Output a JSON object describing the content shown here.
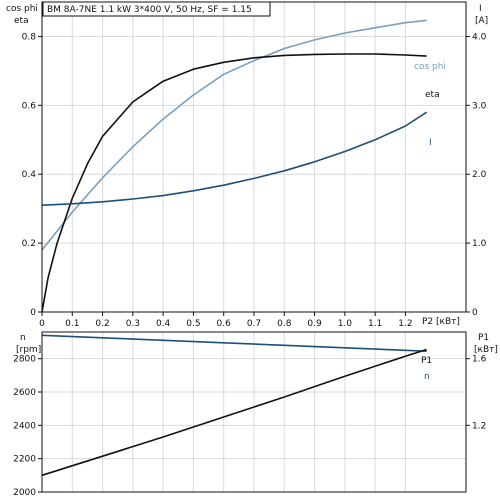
{
  "chart_data": [
    {
      "type": "line",
      "title": "BM 8A-7NE   1.1 kW   3*400 V, 50 Hz, SF = 1.15",
      "xlabel": "P2 [кВт]",
      "left_axis_labels": [
        "cos phi",
        "eta"
      ],
      "right_axis_labels": [
        "I",
        "[A]"
      ],
      "x_ticks": [
        "0",
        "0.1",
        "0.2",
        "0.3",
        "0.4",
        "0.5",
        "0.6",
        "0.7",
        "0.8",
        "0.9",
        "1.0",
        "1.1",
        "1.2"
      ],
      "y_left_ticks": [
        "0",
        "0.2",
        "0.4",
        "0.6",
        "0.8"
      ],
      "y_right_ticks": [
        "0",
        "1.0",
        "2.0",
        "3.0",
        "4.0"
      ],
      "xlim": [
        0,
        1.4
      ],
      "ylim_left": [
        0,
        0.9
      ],
      "ylim_right": [
        0,
        4.5
      ],
      "grid": true,
      "series": [
        {
          "name": "cos phi",
          "axis": "left",
          "color": "#7a9fbf",
          "x": [
            0,
            0.1,
            0.2,
            0.3,
            0.4,
            0.5,
            0.6,
            0.7,
            0.8,
            0.9,
            1.0,
            1.1,
            1.2,
            1.27
          ],
          "y": [
            0.18,
            0.29,
            0.39,
            0.48,
            0.56,
            0.63,
            0.69,
            0.73,
            0.765,
            0.79,
            0.81,
            0.825,
            0.84,
            0.847
          ]
        },
        {
          "name": "eta",
          "axis": "left",
          "color": "#111111",
          "x": [
            0,
            0.02,
            0.05,
            0.1,
            0.15,
            0.2,
            0.3,
            0.4,
            0.5,
            0.6,
            0.7,
            0.8,
            0.9,
            1.0,
            1.1,
            1.2,
            1.27
          ],
          "y": [
            0,
            0.1,
            0.2,
            0.33,
            0.43,
            0.51,
            0.61,
            0.67,
            0.705,
            0.725,
            0.738,
            0.745,
            0.748,
            0.749,
            0.749,
            0.746,
            0.743
          ]
        },
        {
          "name": "I",
          "axis": "right",
          "color": "#1f4e79",
          "x": [
            0,
            0.1,
            0.2,
            0.3,
            0.4,
            0.5,
            0.6,
            0.7,
            0.8,
            0.9,
            1.0,
            1.1,
            1.2,
            1.27
          ],
          "y": [
            1.55,
            1.57,
            1.6,
            1.64,
            1.69,
            1.76,
            1.84,
            1.94,
            2.05,
            2.18,
            2.33,
            2.5,
            2.7,
            2.9
          ]
        }
      ]
    },
    {
      "type": "line",
      "xlabel": "",
      "left_axis_labels": [
        "n",
        "[rpm]"
      ],
      "right_axis_labels": [
        "P1",
        "[кВт]"
      ],
      "y_left_ticks": [
        "2000",
        "2200",
        "2400",
        "2600",
        "2800"
      ],
      "y_right_ticks": [
        "1.2",
        "1.6"
      ],
      "xlim": [
        0,
        1.4
      ],
      "ylim_left": [
        2000,
        2960
      ],
      "grid": true,
      "series": [
        {
          "name": "n",
          "axis": "left",
          "color": "#1f4e79",
          "x": [
            0,
            0.2,
            0.4,
            0.6,
            0.8,
            1.0,
            1.2,
            1.27
          ],
          "y": [
            2940,
            2925,
            2910,
            2895,
            2880,
            2865,
            2850,
            2845
          ]
        },
        {
          "name": "P1",
          "axis": "left",
          "color": "#111111",
          "x": [
            0,
            0.2,
            0.4,
            0.6,
            0.8,
            1.0,
            1.2,
            1.27
          ],
          "y": [
            2100,
            2215,
            2330,
            2450,
            2570,
            2695,
            2815,
            2855
          ]
        }
      ]
    }
  ]
}
